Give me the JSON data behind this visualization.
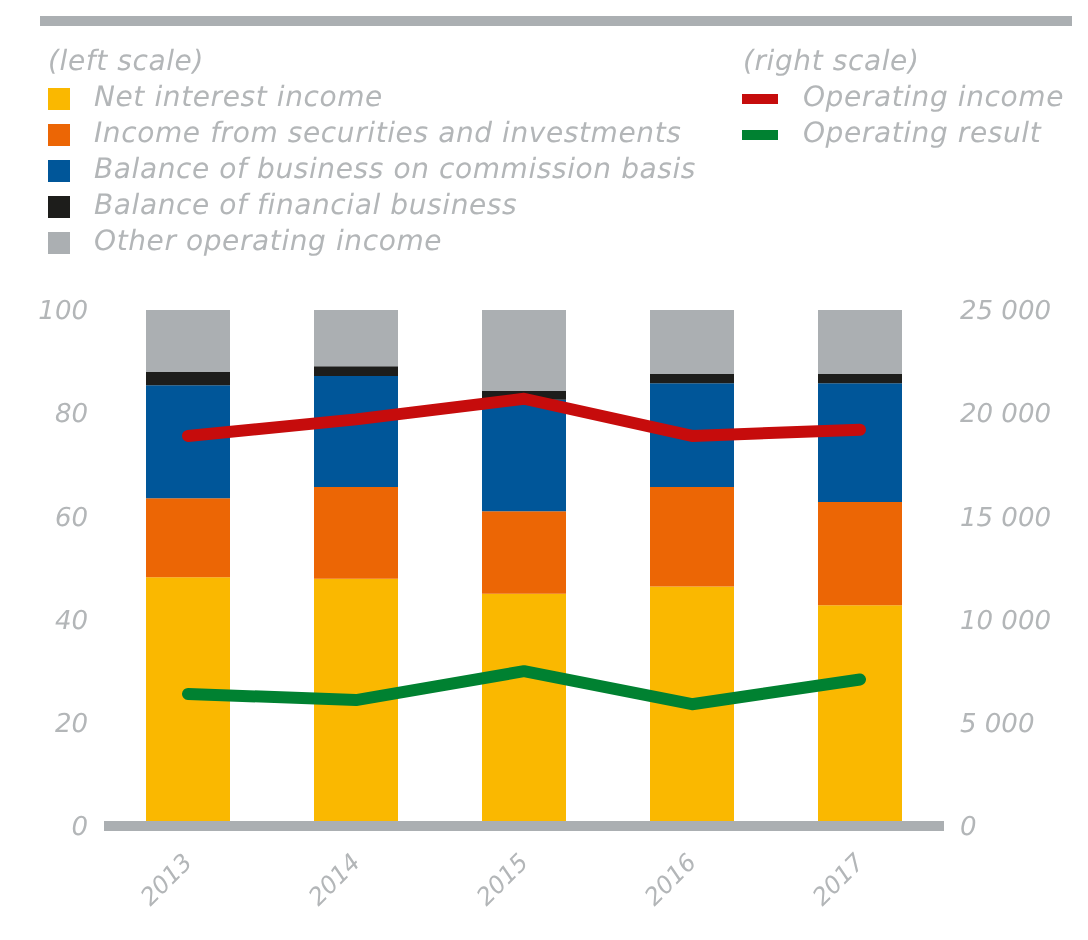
{
  "chart_data": {
    "type": "bar",
    "stacked": true,
    "categories": [
      "2013",
      "2014",
      "2015",
      "2016",
      "2017"
    ],
    "series": [
      {
        "name": "Net interest income",
        "color": "#fab800",
        "values": [
          48.2,
          47.9,
          45.0,
          46.4,
          42.8
        ]
      },
      {
        "name": "Income from securities and investments",
        "color": "#ec6605",
        "values": [
          15.3,
          17.8,
          16.0,
          19.3,
          20.0
        ]
      },
      {
        "name": "Balance of business on commission basis",
        "color": "#005699",
        "values": [
          21.9,
          21.5,
          21.6,
          20.1,
          23.0
        ]
      },
      {
        "name": "Balance of financial business",
        "color": "#1d1d1b",
        "values": [
          2.6,
          1.9,
          1.7,
          1.8,
          1.8
        ]
      },
      {
        "name": "Other operating income",
        "color": "#abafb2",
        "values": [
          12.0,
          10.9,
          15.7,
          12.4,
          12.4
        ]
      },
      {
        "name": "Operating income",
        "type": "line",
        "axis": "y2",
        "color": "#c60c0c",
        "values": [
          18900,
          19700,
          20700,
          18900,
          19200
        ]
      },
      {
        "name": "Operating result",
        "type": "line",
        "axis": "y2",
        "color": "#008131",
        "values": [
          6400,
          6100,
          7500,
          5900,
          7100
        ]
      }
    ],
    "ylim": [
      0,
      100
    ],
    "yticks": [
      0,
      20,
      40,
      60,
      80,
      100
    ],
    "y2lim": [
      0,
      25000
    ],
    "y2ticks": [
      {
        "value": 0,
        "label": "0"
      },
      {
        "value": 5000,
        "label": "5 000"
      },
      {
        "value": 10000,
        "label": "10 000"
      },
      {
        "value": 15000,
        "label": "15 000"
      },
      {
        "value": 20000,
        "label": "20 000"
      },
      {
        "value": 25000,
        "label": "25 000"
      }
    ],
    "annotations": [
      "(left scale)",
      "(right scale)"
    ],
    "legend": "top"
  }
}
